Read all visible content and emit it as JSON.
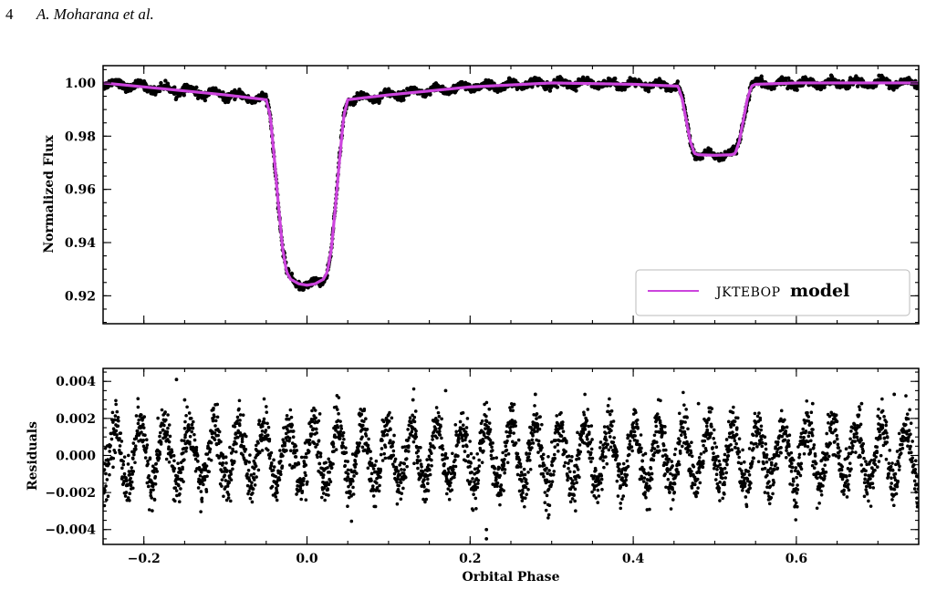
{
  "page_header": {
    "page_number": "4",
    "authors": "A. Moharana et al."
  },
  "chart_data": [
    {
      "type": "line",
      "ylabel": "Normalized Flux",
      "xlim": [
        -0.25,
        0.75
      ],
      "ylim": [
        0.9095,
        1.0065
      ],
      "yticks": [
        0.92,
        0.94,
        0.96,
        0.98,
        1.0
      ],
      "ytick_labels": [
        "0.92",
        "0.94",
        "0.96",
        "0.98",
        "1.00"
      ],
      "legend": {
        "position": "bottom-right",
        "label_smallcaps": "JKTEBOP",
        "label_bold": "model"
      },
      "colors": {
        "data": "#000000",
        "model": "#cc44dd"
      },
      "series": [
        {
          "name": "JKTEBOP model",
          "style": "line",
          "x": [
            -0.25,
            -0.2,
            -0.1,
            -0.05,
            -0.045,
            -0.04,
            -0.035,
            -0.03,
            -0.025,
            -0.02,
            -0.01,
            0.0,
            0.01,
            0.02,
            0.025,
            0.03,
            0.035,
            0.04,
            0.045,
            0.05,
            0.1,
            0.2,
            0.3,
            0.4,
            0.455,
            0.46,
            0.465,
            0.47,
            0.475,
            0.48,
            0.5,
            0.52,
            0.525,
            0.53,
            0.535,
            0.54,
            0.545,
            0.55,
            0.6,
            0.7,
            0.75
          ],
          "y": [
            1.0,
            0.9985,
            0.9955,
            0.9937,
            0.9875,
            0.9715,
            0.954,
            0.938,
            0.929,
            0.9262,
            0.9245,
            0.924,
            0.9245,
            0.9262,
            0.929,
            0.938,
            0.954,
            0.9715,
            0.9875,
            0.9937,
            0.9955,
            0.9985,
            1.0,
            0.9995,
            0.9988,
            0.994,
            0.986,
            0.978,
            0.9735,
            0.973,
            0.9728,
            0.973,
            0.9735,
            0.978,
            0.986,
            0.994,
            0.9988,
            0.9995,
            1.0,
            1.0,
            1.0
          ]
        },
        {
          "name": "data",
          "style": "scatter",
          "x": [],
          "y": []
        }
      ]
    },
    {
      "type": "scatter",
      "xlabel": "Orbital Phase",
      "ylabel": "Residuals",
      "xlim": [
        -0.25,
        0.75
      ],
      "ylim": [
        -0.0048,
        0.0047
      ],
      "xticks": [
        -0.2,
        0.0,
        0.2,
        0.4,
        0.6
      ],
      "xtick_labels": [
        "−0.2",
        "0.0",
        "0.2",
        "0.4",
        "0.6"
      ],
      "yticks": [
        -0.004,
        -0.002,
        0.0,
        0.002,
        0.004
      ],
      "ytick_labels": [
        "−0.004",
        "−0.002",
        "0.000",
        "0.002",
        "0.004"
      ],
      "colors": {
        "data": "#000000"
      },
      "series": [
        {
          "name": "residuals",
          "x": [
            -0.16,
            0.17,
            0.22,
            0.22,
            0.26,
            0.72,
            -0.15,
            0.13,
            0.28,
            0.48,
            0.62,
            0.68
          ],
          "y": [
            0.0041,
            0.0035,
            -0.0045,
            -0.004,
            -0.0049,
            0.0033,
            0.003,
            0.003,
            0.0033,
            0.0028,
            0.0028,
            0.0028
          ]
        }
      ]
    }
  ]
}
